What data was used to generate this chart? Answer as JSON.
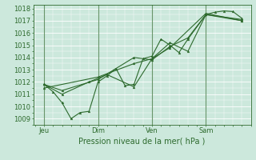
{
  "xlabel": "Pression niveau de la mer( hPa )",
  "bg_color": "#cce8dc",
  "grid_color": "#ffffff",
  "line_color": "#2d6a2d",
  "ylim": [
    1008.5,
    1018.3
  ],
  "yticks": [
    1009,
    1010,
    1011,
    1012,
    1013,
    1014,
    1015,
    1016,
    1017,
    1018
  ],
  "xtick_labels": [
    "Jeu",
    "Dim",
    "Ven",
    "Sam"
  ],
  "xtick_positions": [
    0.5,
    3.5,
    6.5,
    9.5
  ],
  "vline_positions": [
    0.5,
    3.5,
    6.5,
    9.5
  ],
  "xlim": [
    -0.1,
    12.0
  ],
  "series": [
    [
      [
        0.5,
        1.0,
        1.5,
        2.0,
        2.5,
        3.0,
        3.5,
        4.0,
        4.5,
        5.0,
        5.5,
        6.0,
        6.5,
        7.0,
        7.5,
        8.0,
        8.5,
        9.5,
        10.0,
        10.5,
        11.0,
        11.5
      ],
      [
        1011.8,
        1011.2,
        1010.3,
        1009.0,
        1009.5,
        1009.6,
        1012.0,
        1012.5,
        1013.1,
        1011.7,
        1011.8,
        1013.9,
        1014.1,
        1015.5,
        1015.0,
        1014.4,
        1015.5,
        1017.5,
        1017.7,
        1017.8,
        1017.75,
        1017.2
      ]
    ],
    [
      [
        0.5,
        1.5,
        3.0,
        4.0,
        5.5,
        6.5,
        7.5,
        8.5,
        9.5,
        11.5
      ],
      [
        1011.8,
        1011.0,
        1012.0,
        1012.6,
        1011.6,
        1013.9,
        1015.2,
        1014.5,
        1017.5,
        1017.0
      ]
    ],
    [
      [
        0.5,
        1.5,
        3.5,
        5.5,
        6.5,
        7.5,
        8.5,
        9.5,
        11.5
      ],
      [
        1011.8,
        1011.3,
        1012.2,
        1014.0,
        1013.8,
        1014.9,
        1015.6,
        1017.5,
        1017.1
      ]
    ],
    [
      [
        0.5,
        3.5,
        5.5,
        6.5,
        7.5,
        9.5,
        11.5
      ],
      [
        1011.5,
        1012.4,
        1013.5,
        1013.9,
        1014.8,
        1017.6,
        1017.0
      ]
    ]
  ]
}
